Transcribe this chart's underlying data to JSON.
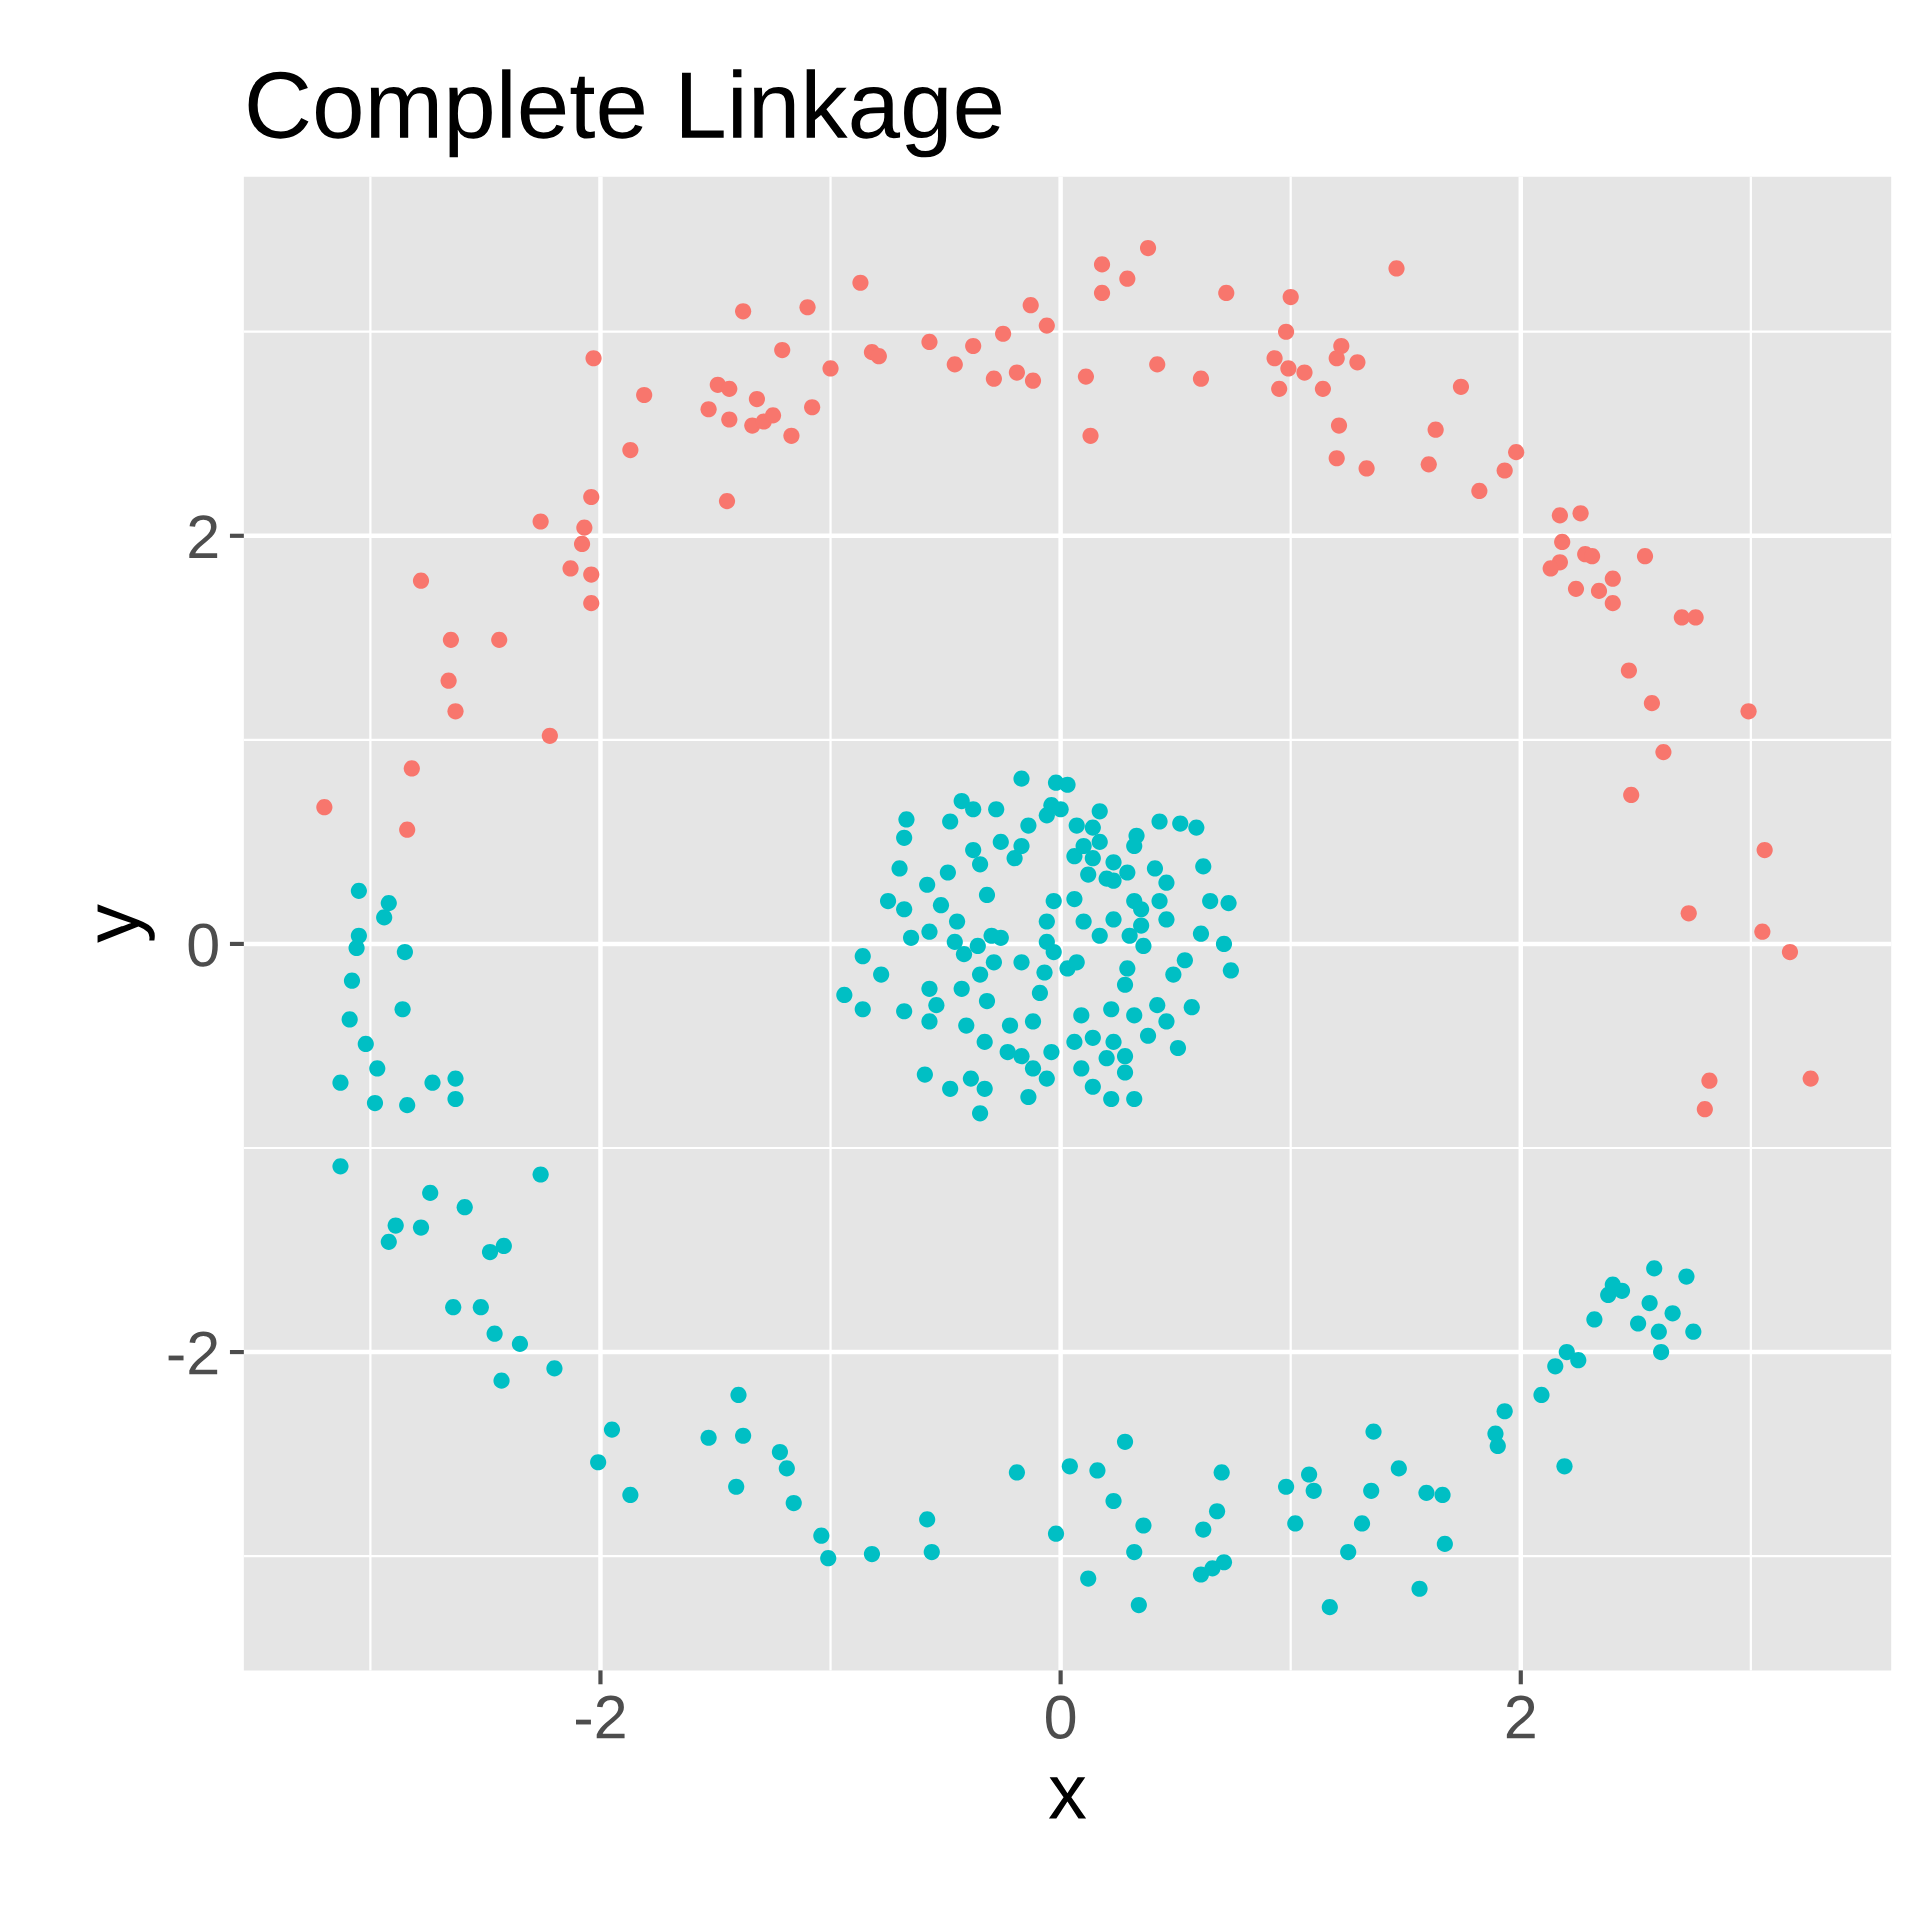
{
  "chart_data": {
    "type": "scatter",
    "title": "Complete Linkage",
    "xlabel": "x",
    "ylabel": "y",
    "xlim": [
      -3.55,
      3.61
    ],
    "ylim": [
      -3.56,
      3.76
    ],
    "xticks": [
      -2,
      0,
      2
    ],
    "yticks": [
      -2,
      0,
      2
    ],
    "grid": true,
    "marker": "circle",
    "series": [
      {
        "color": "#f8766d",
        "x": [
          -3.2,
          -2.84,
          -2.82,
          -2.78,
          -2.65,
          -2.66,
          -2.63,
          -2.44,
          -2.22,
          -2.26,
          -2.13,
          -2.08,
          -2.07,
          -2.04,
          -2.04,
          -2.04,
          -2.03,
          -1.87,
          -1.81,
          -1.53,
          -1.49,
          -1.44,
          -1.44,
          -1.45,
          -1.38,
          -1.32,
          -1.34,
          -1.29,
          -1.25,
          -1.21,
          -1.17,
          -1.1,
          -1.08,
          -1.0,
          -0.87,
          -0.82,
          -0.79,
          -0.57,
          -0.46,
          -0.38,
          -0.29,
          -0.25,
          -0.19,
          -0.13,
          -0.12,
          -0.06,
          0.11,
          0.13,
          0.18,
          0.18,
          0.29,
          0.38,
          0.42,
          0.61,
          0.72,
          0.93,
          0.95,
          0.98,
          1.0,
          0.99,
          1.06,
          1.14,
          1.2,
          1.22,
          1.29,
          1.21,
          1.2,
          1.33,
          1.46,
          1.6,
          1.63,
          1.74,
          1.82,
          1.93,
          1.98,
          2.17,
          2.26,
          2.18,
          2.17,
          2.13,
          2.28,
          2.31,
          2.24,
          2.34,
          2.4,
          2.4,
          2.54,
          2.47,
          2.57,
          2.62,
          2.48,
          2.7,
          2.76,
          2.99,
          3.06,
          2.73,
          3.05,
          3.17,
          2.82,
          2.8,
          3.26
        ],
        "values": [
          0.67,
          0.56,
          0.86,
          1.78,
          1.49,
          1.29,
          1.14,
          1.49,
          1.02,
          2.07,
          1.84,
          1.96,
          2.04,
          2.19,
          1.81,
          1.67,
          2.87,
          2.42,
          2.69,
          2.62,
          2.74,
          2.72,
          2.57,
          2.17,
          3.1,
          2.67,
          2.54,
          2.56,
          2.59,
          2.91,
          2.49,
          3.12,
          2.63,
          2.82,
          3.24,
          2.9,
          2.88,
          2.95,
          2.84,
          2.93,
          2.77,
          2.99,
          2.8,
          3.13,
          2.76,
          3.03,
          2.78,
          2.49,
          3.33,
          3.19,
          3.26,
          3.41,
          2.84,
          2.77,
          3.19,
          2.87,
          2.72,
          3.0,
          3.17,
          2.82,
          2.8,
          2.72,
          2.87,
          2.93,
          2.85,
          2.54,
          2.38,
          2.33,
          3.31,
          2.35,
          2.52,
          2.73,
          2.22,
          2.32,
          2.41,
          2.1,
          2.11,
          1.97,
          1.87,
          1.84,
          1.91,
          1.9,
          1.74,
          1.73,
          1.79,
          1.67,
          1.9,
          1.34,
          1.18,
          0.94,
          0.73,
          1.6,
          1.6,
          1.14,
          0.46,
          0.15,
          0.06,
          -0.04,
          -0.67,
          -0.81,
          -0.66
        ]
      },
      {
        "color": "#00bfc4",
        "x": [
          -3.05,
          -2.92,
          -2.94,
          -3.05,
          -3.06,
          -2.85,
          -3.08,
          -3.09,
          -2.86,
          -3.02,
          -2.97,
          -3.13,
          -2.98,
          -2.84,
          -2.73,
          -2.63,
          -2.63,
          -3.13,
          -2.26,
          -2.89,
          -2.92,
          -2.78,
          -2.74,
          -2.59,
          -2.48,
          -2.42,
          -2.64,
          -2.52,
          -2.46,
          -2.35,
          -2.43,
          -2.2,
          -1.95,
          -2.01,
          -1.87,
          -1.53,
          -1.4,
          -1.38,
          -1.41,
          -1.22,
          -1.19,
          -1.16,
          -1.04,
          -1.01,
          -0.82,
          -0.58,
          -0.56,
          -0.19,
          -0.02,
          0.04,
          0.16,
          0.28,
          0.23,
          0.12,
          0.36,
          0.32,
          0.34,
          0.7,
          0.68,
          0.62,
          0.61,
          0.66,
          0.71,
          0.98,
          1.08,
          1.1,
          1.02,
          1.25,
          1.31,
          1.36,
          1.35,
          1.17,
          1.47,
          1.56,
          1.59,
          1.66,
          1.67,
          1.89,
          1.9,
          1.93,
          2.09,
          2.19,
          2.15,
          2.2,
          2.25,
          2.32,
          2.38,
          2.4,
          2.44,
          2.58,
          2.72,
          2.56,
          2.51,
          2.6,
          2.66,
          2.61,
          2.75,
          -0.17,
          -0.02,
          0.03,
          -0.04,
          0,
          -0.06,
          0.17,
          -0.67,
          -0.68,
          -0.43,
          -0.48,
          -0.38,
          -0.28,
          -0.14,
          0.07,
          0.14,
          0.33,
          0.43,
          0.52,
          0.59,
          -0.38,
          -0.26,
          -0.17,
          -0.35,
          -0.2,
          0.06,
          0.14,
          0.23,
          0.32,
          -0.7,
          -0.58,
          -0.49,
          0.12,
          0.2,
          0.29,
          0.41,
          0.46,
          0.62,
          -0.75,
          -0.68,
          -0.52,
          -0.32,
          -0.03,
          0.06,
          0.32,
          0.43,
          0.65,
          0.73,
          -0.06,
          0.17,
          0.23,
          0.35,
          0.46,
          -0.86,
          -0.65,
          -0.57,
          -0.45,
          -0.36,
          -0.26,
          -0.17,
          0.61,
          0.71,
          0.74,
          -0.94,
          -0.86,
          -0.78,
          -0.68,
          -0.57,
          -0.54,
          -0.43,
          -0.35,
          -0.32,
          -0.07,
          0.03,
          0.07,
          -0.57,
          -0.41,
          -0.33,
          -0.22,
          -0.12,
          -0.09,
          0.29,
          0.28,
          0.49,
          0.54,
          0.09,
          0.22,
          0.32,
          0.42,
          0.46,
          0.57,
          0.51,
          -0.23,
          -0.17,
          -0.04,
          0.06,
          0.14,
          0.23,
          0.28,
          0.38,
          -0.12,
          -0.06,
          0.09,
          0.2,
          0.28,
          -0.59,
          -0.48,
          -0.39,
          -0.33,
          -0.35,
          -0.14,
          0.14,
          0.22,
          0.32,
          -0.46,
          -0.42,
          -0.29,
          -0.3,
          -0.06,
          -0.03,
          0.1,
          0.3,
          0.36,
          0.35,
          0.23,
          0.1,
          0.17
        ],
        "values": [
          0.26,
          0.2,
          0.13,
          0.04,
          -0.02,
          -0.04,
          -0.18,
          -0.37,
          -0.32,
          -0.49,
          -0.61,
          -0.68,
          -0.78,
          -0.79,
          -0.68,
          -0.66,
          -0.76,
          -1.09,
          -1.13,
          -1.38,
          -1.46,
          -1.39,
          -1.22,
          -1.29,
          -1.51,
          -1.48,
          -1.78,
          -1.78,
          -1.91,
          -1.96,
          -2.14,
          -2.08,
          -2.38,
          -2.54,
          -2.7,
          -2.42,
          -2.21,
          -2.41,
          -2.66,
          -2.49,
          -2.57,
          -2.74,
          -2.9,
          -3.01,
          -2.99,
          -2.82,
          -2.98,
          -2.59,
          -2.89,
          -2.56,
          -2.58,
          -2.44,
          -2.73,
          -3.11,
          -2.85,
          -2.98,
          -3.24,
          -2.59,
          -2.78,
          -2.87,
          -3.09,
          -3.06,
          -3.03,
          -2.66,
          -2.6,
          -2.68,
          -2.84,
          -2.98,
          -2.84,
          -2.39,
          -2.68,
          -3.25,
          -2.57,
          -3.16,
          -2.69,
          -2.7,
          -2.94,
          -2.4,
          -2.46,
          -2.29,
          -2.21,
          -2.56,
          -2.07,
          -2.0,
          -2.04,
          -1.84,
          -1.72,
          -1.67,
          -1.7,
          -1.59,
          -1.63,
          -1.76,
          -1.86,
          -1.9,
          -1.81,
          -2.0,
          -1.9,
          0.81,
          0.79,
          0.78,
          0.68,
          0.66,
          0.63,
          0.65,
          0.61,
          0.52,
          0.7,
          0.6,
          0.66,
          0.66,
          0.58,
          0.58,
          0.57,
          0.53,
          0.6,
          0.59,
          0.57,
          0.46,
          0.5,
          0.48,
          0.39,
          0.42,
          0.43,
          0.42,
          0.4,
          0.48,
          0.37,
          0.29,
          0.35,
          0.34,
          0.32,
          0.35,
          0.37,
          0.3,
          0.38,
          0.21,
          0.17,
          0.19,
          0.24,
          0.21,
          0.22,
          0.21,
          0.21,
          0.21,
          0.2,
          0.11,
          0.04,
          0.12,
          0.09,
          0.12,
          -0.06,
          0.03,
          0.06,
          0.11,
          -0.01,
          0.03,
          -0.09,
          0.05,
          0,
          -0.13,
          -0.25,
          -0.32,
          -0.15,
          -0.33,
          -0.22,
          -0.3,
          -0.22,
          -0.15,
          -0.28,
          -0.14,
          -0.12,
          -0.09,
          -0.38,
          -0.4,
          -0.48,
          -0.4,
          -0.38,
          -0.24,
          -0.12,
          -0.2,
          -0.15,
          -0.08,
          -0.35,
          -0.32,
          -0.35,
          -0.3,
          -0.38,
          -0.31,
          -0.51,
          -0.53,
          -0.55,
          -0.53,
          -0.48,
          -0.46,
          -0.48,
          -0.55,
          -0.45,
          -0.61,
          -0.66,
          -0.61,
          -0.56,
          -0.63,
          -0.64,
          -0.71,
          -0.66,
          -0.71,
          -0.83,
          -0.75,
          -0.7,
          -0.76,
          -0.76,
          0.01,
          -0.05,
          -0.09,
          0.04,
          0.01,
          -0.04,
          0.11,
          0.04,
          -0.01,
          0.17,
          0.31,
          0.48,
          0.5
        ]
      }
    ]
  }
}
